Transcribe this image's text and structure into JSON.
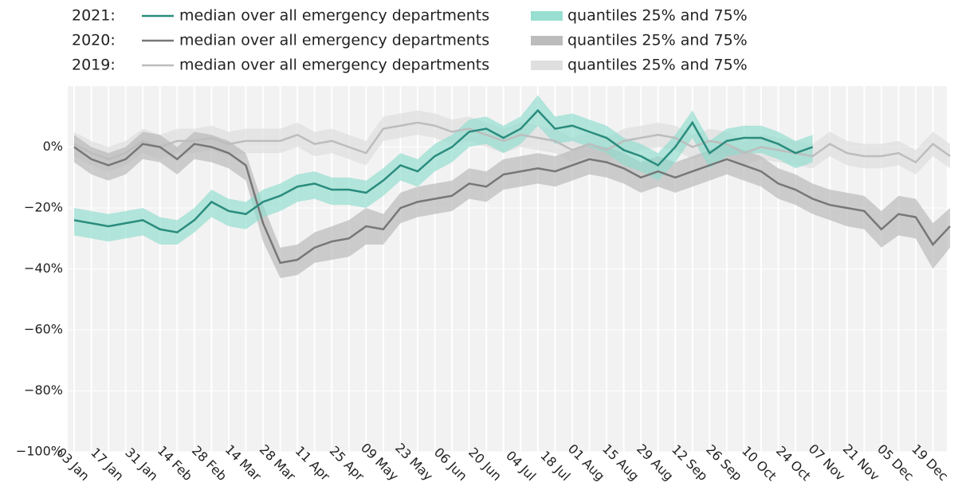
{
  "chart_data": {
    "type": "line",
    "x": [
      "03 Jan",
      "10 Jan",
      "17 Jan",
      "24 Jan",
      "31 Jan",
      "07 Feb",
      "14 Feb",
      "21 Feb",
      "28 Feb",
      "07 Mar",
      "14 Mar",
      "21 Mar",
      "28 Mar",
      "04 Apr",
      "11 Apr",
      "18 Apr",
      "25 Apr",
      "02 May",
      "09 May",
      "16 May",
      "23 May",
      "30 May",
      "06 Jun",
      "13 Jun",
      "20 Jun",
      "27 Jun",
      "04 Jul",
      "11 Jul",
      "18 Jul",
      "25 Jul",
      "01 Aug",
      "08 Aug",
      "15 Aug",
      "22 Aug",
      "29 Aug",
      "05 Sep",
      "12 Sep",
      "19 Sep",
      "26 Sep",
      "03 Oct",
      "10 Oct",
      "17 Oct",
      "24 Oct",
      "31 Oct",
      "07 Nov",
      "14 Nov",
      "21 Nov",
      "28 Nov",
      "05 Dec",
      "12 Dec",
      "19 Dec",
      "26 Dec"
    ],
    "xticks": [
      "03 Jan",
      "17 Jan",
      "31 Jan",
      "14 Feb",
      "28 Feb",
      "14 Mar",
      "28 Mar",
      "11 Apr",
      "25 Apr",
      "09 May",
      "23 May",
      "06 Jun",
      "20 Jun",
      "04 Jul",
      "18 Jul",
      "01 Aug",
      "15 Aug",
      "29 Aug",
      "12 Sep",
      "26 Sep",
      "10 Oct",
      "24 Oct",
      "07 Nov",
      "21 Nov",
      "05 Dec",
      "19 Dec"
    ],
    "ylim": [
      -100,
      20
    ],
    "yticks": [
      {
        "value": -100,
        "label": "−100%"
      },
      {
        "value": -80,
        "label": "−80%"
      },
      {
        "value": -60,
        "label": "−60%"
      },
      {
        "value": -40,
        "label": "−40%"
      },
      {
        "value": -20,
        "label": "−20%"
      },
      {
        "value": 0,
        "label": "0%"
      }
    ],
    "grid": true,
    "series": [
      {
        "group": "2021:",
        "name": "median over all emergency departments",
        "color": "#2a8c7e",
        "values": [
          -24,
          -25,
          -26,
          -25,
          -24,
          -27,
          -28,
          -24,
          -18,
          -21,
          -22,
          -18,
          -16,
          -13,
          -12,
          -14,
          -14,
          -15,
          -11,
          -6,
          -8,
          -3,
          0,
          5,
          6,
          3,
          6,
          12,
          6,
          7,
          5,
          3,
          -1,
          -3,
          -6,
          0,
          8,
          -2,
          2,
          3,
          3,
          1,
          -2,
          0,
          null,
          null,
          null,
          null,
          null,
          null,
          null,
          null
        ]
      },
      {
        "name": "quantiles 25% and 75%",
        "color": "#8ddccc",
        "lower": [
          -29,
          -30,
          -31,
          -30,
          -29,
          -32,
          -32,
          -28,
          -23,
          -26,
          -27,
          -23,
          -21,
          -18,
          -17,
          -19,
          -19,
          -20,
          -16,
          -11,
          -13,
          -8,
          -5,
          0,
          1,
          -2,
          1,
          7,
          1,
          2,
          0,
          -2,
          -6,
          -8,
          -11,
          -5,
          3,
          -7,
          -3,
          -2,
          -2,
          -4,
          -7,
          -5,
          null,
          null,
          null,
          null,
          null,
          null,
          null,
          null
        ],
        "upper": [
          -20,
          -21,
          -22,
          -21,
          -20,
          -23,
          -24,
          -20,
          -14,
          -17,
          -18,
          -14,
          -12,
          -9,
          -8,
          -10,
          -10,
          -11,
          -7,
          -2,
          -4,
          1,
          4,
          9,
          10,
          7,
          10,
          17,
          10,
          11,
          9,
          7,
          3,
          1,
          -2,
          4,
          12,
          2,
          6,
          7,
          7,
          5,
          2,
          4,
          null,
          null,
          null,
          null,
          null,
          null,
          null,
          null
        ]
      },
      {
        "group": "2020:",
        "name": "median over all emergency departments",
        "color": "#777777",
        "values": [
          0,
          -4,
          -6,
          -4,
          1,
          0,
          -4,
          1,
          0,
          -2,
          -6,
          -25,
          -38,
          -37,
          -33,
          -31,
          -30,
          -26,
          -27,
          -20,
          -18,
          -17,
          -16,
          -12,
          -13,
          -9,
          -8,
          -7,
          -8,
          -6,
          -4,
          -5,
          -7,
          -10,
          -8,
          -10,
          -8,
          -6,
          -4,
          -6,
          -8,
          -12,
          -14,
          -17,
          -19,
          -20,
          -21,
          -27,
          -22,
          -23,
          -32,
          -26
        ]
      },
      {
        "name": "quantiles 25% and 75%",
        "color": "#b5b5b5",
        "lower": [
          -5,
          -9,
          -11,
          -9,
          -4,
          -5,
          -9,
          -4,
          -5,
          -7,
          -11,
          -31,
          -43,
          -42,
          -38,
          -37,
          -36,
          -32,
          -32,
          -25,
          -23,
          -22,
          -21,
          -17,
          -18,
          -14,
          -13,
          -12,
          -13,
          -11,
          -9,
          -10,
          -12,
          -15,
          -13,
          -15,
          -13,
          -11,
          -9,
          -11,
          -13,
          -17,
          -19,
          -22,
          -24,
          -26,
          -27,
          -33,
          -29,
          -30,
          -40,
          -33
        ],
        "upper": [
          4,
          0,
          -2,
          0,
          5,
          4,
          0,
          5,
          4,
          2,
          -2,
          -19,
          -33,
          -32,
          -28,
          -26,
          -24,
          -20,
          -22,
          -15,
          -13,
          -12,
          -11,
          -7,
          -8,
          -4,
          -3,
          -2,
          -3,
          -1,
          1,
          0,
          -2,
          -5,
          -3,
          -5,
          -3,
          -1,
          1,
          -1,
          -3,
          -7,
          -9,
          -12,
          -14,
          -15,
          -16,
          -21,
          -16,
          -17,
          -25,
          -20
        ]
      },
      {
        "group": "2019:",
        "name": "median over all emergency departments",
        "color": "#bdbdbd",
        "values": [
          1,
          -2,
          -4,
          -2,
          2,
          0,
          2,
          2,
          3,
          1,
          2,
          2,
          2,
          4,
          1,
          2,
          0,
          -2,
          6,
          7,
          8,
          7,
          5,
          6,
          4,
          2,
          4,
          3,
          2,
          -1,
          1,
          -1,
          2,
          3,
          4,
          3,
          0,
          2,
          1,
          -2,
          0,
          -1,
          -2,
          -3,
          1,
          -2,
          -3,
          -3,
          -2,
          -5,
          1,
          -3
        ]
      },
      {
        "name": "quantiles 25% and 75%",
        "color": "#dcdcdc",
        "lower": [
          -3,
          -6,
          -8,
          -6,
          -2,
          -4,
          -2,
          -2,
          -1,
          -3,
          -2,
          -2,
          -2,
          0,
          -3,
          -2,
          -4,
          -6,
          2,
          3,
          4,
          3,
          1,
          2,
          0,
          -2,
          0,
          -1,
          -2,
          -5,
          -3,
          -5,
          -2,
          -1,
          0,
          -1,
          -4,
          -2,
          -3,
          -6,
          -4,
          -5,
          -6,
          -7,
          -3,
          -6,
          -7,
          -7,
          -6,
          -9,
          -3,
          -7
        ],
        "upper": [
          5,
          2,
          0,
          2,
          6,
          4,
          6,
          6,
          7,
          5,
          6,
          6,
          6,
          8,
          5,
          6,
          4,
          2,
          10,
          11,
          12,
          11,
          9,
          10,
          8,
          6,
          8,
          7,
          6,
          3,
          5,
          3,
          6,
          7,
          8,
          7,
          4,
          6,
          5,
          2,
          4,
          3,
          2,
          1,
          5,
          2,
          1,
          1,
          2,
          -1,
          5,
          1
        ]
      }
    ]
  }
}
